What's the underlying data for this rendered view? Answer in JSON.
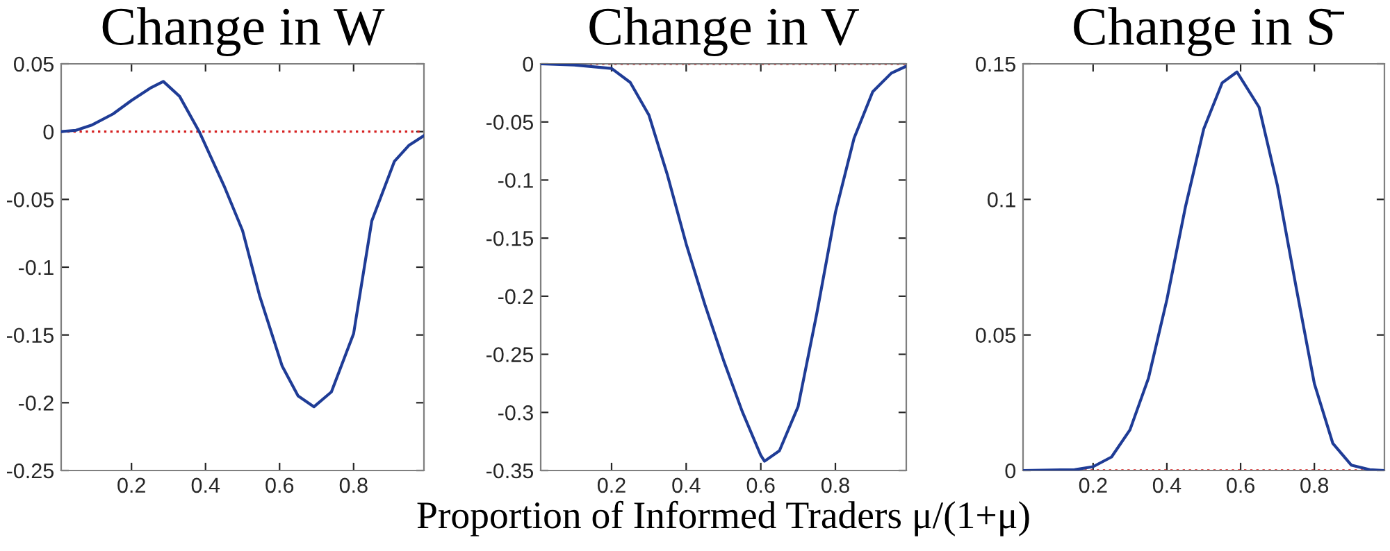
{
  "chart_data": [
    {
      "type": "line",
      "title": "Change in W",
      "xlim": [
        0.01,
        0.99
      ],
      "ylim": [
        -0.25,
        0.05
      ],
      "xticks": [
        0.2,
        0.4,
        0.6,
        0.8
      ],
      "yticks": [
        -0.25,
        -0.2,
        -0.15,
        -0.1,
        -0.05,
        0,
        0.05
      ],
      "grid": false,
      "x": [
        0.01,
        0.05,
        0.094,
        0.15,
        0.2,
        0.25,
        0.286,
        0.33,
        0.383,
        0.45,
        0.5,
        0.546,
        0.607,
        0.65,
        0.693,
        0.74,
        0.8,
        0.849,
        0.91,
        0.95,
        0.99
      ],
      "series": [
        {
          "color": "#1f3c96",
          "values": [
            0,
            0.001,
            0.005,
            0.013,
            0.023,
            0.032,
            0.037,
            0.026,
            0,
            -0.04,
            -0.073,
            -0.121,
            -0.173,
            -0.195,
            -0.203,
            -0.192,
            -0.149,
            -0.066,
            -0.022,
            -0.01,
            -0.003
          ]
        }
      ],
      "ref_lines": [
        {
          "axis": "y",
          "value": 0,
          "color": "#d62020",
          "line_style": "dotted"
        }
      ]
    },
    {
      "type": "line",
      "title": "Change in V",
      "xlabel": "Proportion of Informed Traders μ/(1+μ)",
      "xlim": [
        0.01,
        0.99
      ],
      "ylim": [
        -0.35,
        0
      ],
      "xticks": [
        0.2,
        0.4,
        0.6,
        0.8
      ],
      "yticks": [
        -0.35,
        -0.3,
        -0.25,
        -0.2,
        -0.15,
        -0.1,
        -0.05,
        0
      ],
      "grid": false,
      "x": [
        0.01,
        0.1,
        0.2,
        0.25,
        0.3,
        0.35,
        0.4,
        0.45,
        0.5,
        0.55,
        0.6,
        0.61,
        0.65,
        0.7,
        0.75,
        0.8,
        0.85,
        0.9,
        0.95,
        0.99
      ],
      "series": [
        {
          "color": "#1f3c96",
          "values": [
            0,
            -0.001,
            -0.004,
            -0.016,
            -0.044,
            -0.096,
            -0.155,
            -0.207,
            -0.255,
            -0.299,
            -0.337,
            -0.342,
            -0.333,
            -0.295,
            -0.215,
            -0.128,
            -0.064,
            -0.024,
            -0.008,
            -0.002
          ]
        }
      ],
      "ref_lines": [
        {
          "axis": "y",
          "value": 0,
          "color": "#d62020",
          "line_style": "dotted"
        }
      ]
    },
    {
      "type": "line",
      "title": "Change in S̄",
      "xlim": [
        0.01,
        0.99
      ],
      "ylim": [
        0,
        0.15
      ],
      "xticks": [
        0.2,
        0.4,
        0.6,
        0.8
      ],
      "yticks": [
        0,
        0.05,
        0.1,
        0.15
      ],
      "grid": false,
      "x": [
        0.01,
        0.15,
        0.2,
        0.25,
        0.3,
        0.35,
        0.4,
        0.45,
        0.5,
        0.55,
        0.59,
        0.65,
        0.7,
        0.75,
        0.8,
        0.85,
        0.9,
        0.95,
        0.99
      ],
      "series": [
        {
          "color": "#1f3c96",
          "values": [
            0,
            0.0003,
            0.0014,
            0.005,
            0.015,
            0.034,
            0.063,
            0.097,
            0.126,
            0.143,
            0.147,
            0.134,
            0.105,
            0.068,
            0.032,
            0.01,
            0.002,
            0.0003,
            0
          ]
        }
      ],
      "ref_lines": [
        {
          "axis": "y",
          "value": 0,
          "color": "#d62020",
          "line_style": "dotted"
        }
      ]
    }
  ]
}
